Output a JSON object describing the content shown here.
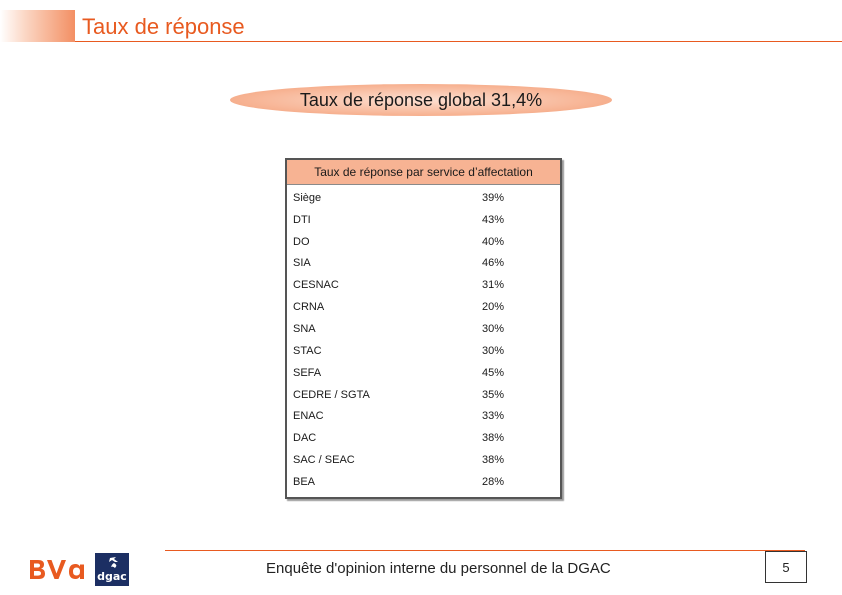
{
  "header": {
    "title": "Taux de réponse"
  },
  "global": {
    "text": "Taux de réponse global 31,4%"
  },
  "table": {
    "title": "Taux de réponse par service d’affectation",
    "rows": [
      {
        "service": "Siège",
        "rate": "39%"
      },
      {
        "service": "DTI",
        "rate": "43%"
      },
      {
        "service": "DO",
        "rate": "40%"
      },
      {
        "service": "SIA",
        "rate": "46%"
      },
      {
        "service": "CESNAC",
        "rate": "31%"
      },
      {
        "service": "CRNA",
        "rate": "20%"
      },
      {
        "service": "SNA",
        "rate": "30%"
      },
      {
        "service": "STAC",
        "rate": "30%"
      },
      {
        "service": "SEFA",
        "rate": "45%"
      },
      {
        "service": "CEDRE / SGTA",
        "rate": "35%"
      },
      {
        "service": "ENAC",
        "rate": "33%"
      },
      {
        "service": "DAC",
        "rate": "38%"
      },
      {
        "service": "SAC / SEAC",
        "rate": "38%"
      },
      {
        "service": "BEA",
        "rate": "28%"
      }
    ]
  },
  "footer": {
    "text": "Enquête d'opinion interne du personnel de la DGAC",
    "page": "5",
    "logos": {
      "bva": "BVA",
      "dgac": "dgac"
    }
  },
  "colors": {
    "accent": "#e85a20",
    "highlight": "#f7b393",
    "navy": "#1c2f63"
  }
}
